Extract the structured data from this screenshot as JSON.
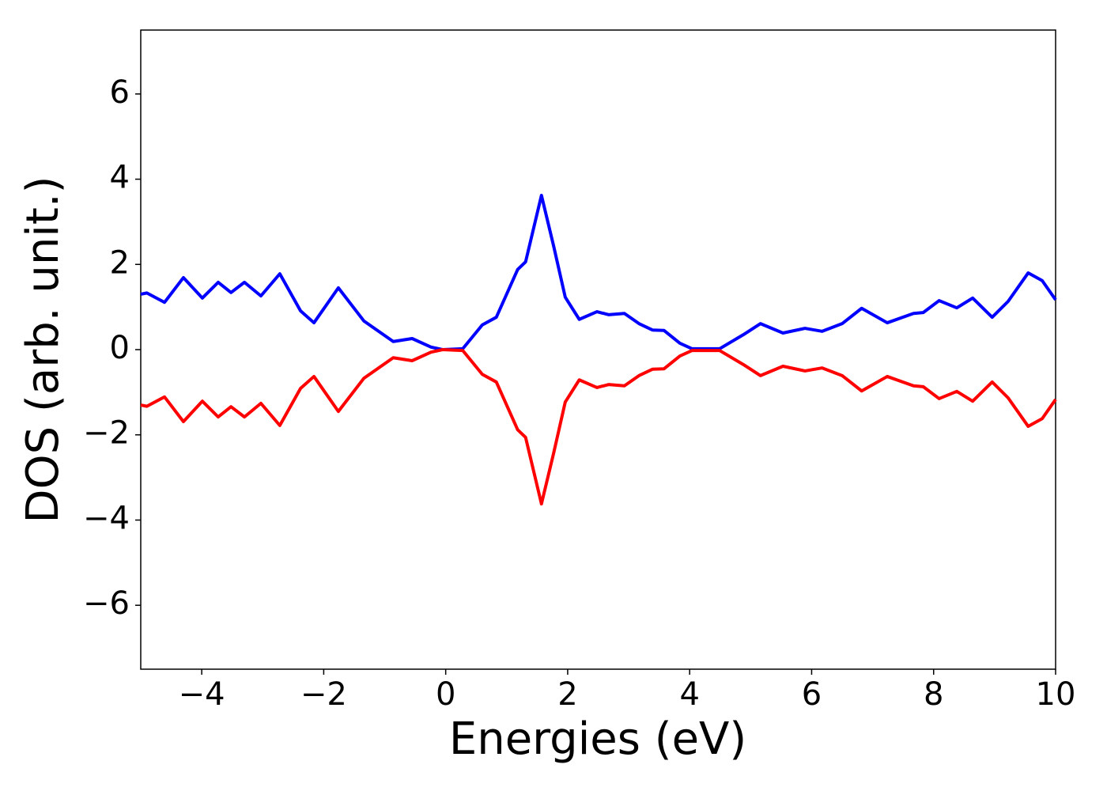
{
  "chart_data": {
    "type": "line",
    "xlabel": "Energies (eV)",
    "ylabel": "DOS (arb. unit.)",
    "x": [
      -5,
      -4.9,
      -4.61,
      -4.3,
      -3.99,
      -3.73,
      -3.52,
      -3.3,
      -3.03,
      -2.72,
      -2.38,
      -2.16,
      -1.76,
      -1.34,
      -1.15,
      -0.86,
      -0.55,
      -0.24,
      -0.05,
      0.28,
      0.6,
      0.83,
      1.18,
      1.31,
      1.57,
      1.77,
      1.96,
      2.19,
      2.48,
      2.67,
      2.93,
      3.17,
      3.39,
      3.58,
      3.84,
      4.04,
      4.49,
      4.88,
      5.16,
      5.53,
      5.89,
      6.17,
      6.5,
      6.82,
      7.24,
      7.67,
      7.83,
      8.09,
      8.38,
      8.64,
      8.96,
      9.22,
      9.55,
      9.78,
      10
    ],
    "series": [
      {
        "color": "#0000ff",
        "values": [
          1.3,
          1.33,
          1.11,
          1.69,
          1.21,
          1.58,
          1.34,
          1.58,
          1.26,
          1.78,
          0.91,
          0.63,
          1.45,
          0.67,
          0.48,
          0.19,
          0.26,
          0.06,
          0,
          0.02,
          0.58,
          0.76,
          1.88,
          2.06,
          3.62,
          2.43,
          1.23,
          0.71,
          0.89,
          0.82,
          0.85,
          0.61,
          0.46,
          0.45,
          0.15,
          0.02,
          0.02,
          0.35,
          0.61,
          0.39,
          0.5,
          0.43,
          0.61,
          0.97,
          0.63,
          0.85,
          0.87,
          1.15,
          0.98,
          1.21,
          0.76,
          1.13,
          1.8,
          1.62,
          1.17
        ]
      },
      {
        "color": "#ff0000",
        "values": [
          -1.3,
          -1.33,
          -1.11,
          -1.69,
          -1.21,
          -1.58,
          -1.34,
          -1.58,
          -1.26,
          -1.78,
          -0.91,
          -0.63,
          -1.45,
          -0.67,
          -0.48,
          -0.19,
          -0.26,
          -0.06,
          0,
          -0.02,
          -0.58,
          -0.76,
          -1.88,
          -2.06,
          -3.62,
          -2.43,
          -1.23,
          -0.71,
          -0.89,
          -0.82,
          -0.85,
          -0.61,
          -0.46,
          -0.45,
          -0.15,
          -0.02,
          -0.02,
          -0.35,
          -0.61,
          -0.39,
          -0.5,
          -0.43,
          -0.61,
          -0.97,
          -0.63,
          -0.85,
          -0.87,
          -1.15,
          -0.98,
          -1.21,
          -0.76,
          -1.13,
          -1.8,
          -1.62,
          -1.17
        ]
      }
    ],
    "xlim": [
      -5,
      10
    ],
    "xticks": [
      {
        "value": -4,
        "label": "−4"
      },
      {
        "value": -2,
        "label": "−2"
      },
      0,
      2,
      4,
      6,
      8,
      10
    ],
    "ylim": [
      -7.5,
      7.5
    ],
    "yticks": [
      {
        "value": -6,
        "label": "−6"
      },
      {
        "value": -4,
        "label": "−4"
      },
      {
        "value": -2,
        "label": "−2"
      },
      0,
      2,
      4,
      6
    ],
    "grid": false
  }
}
